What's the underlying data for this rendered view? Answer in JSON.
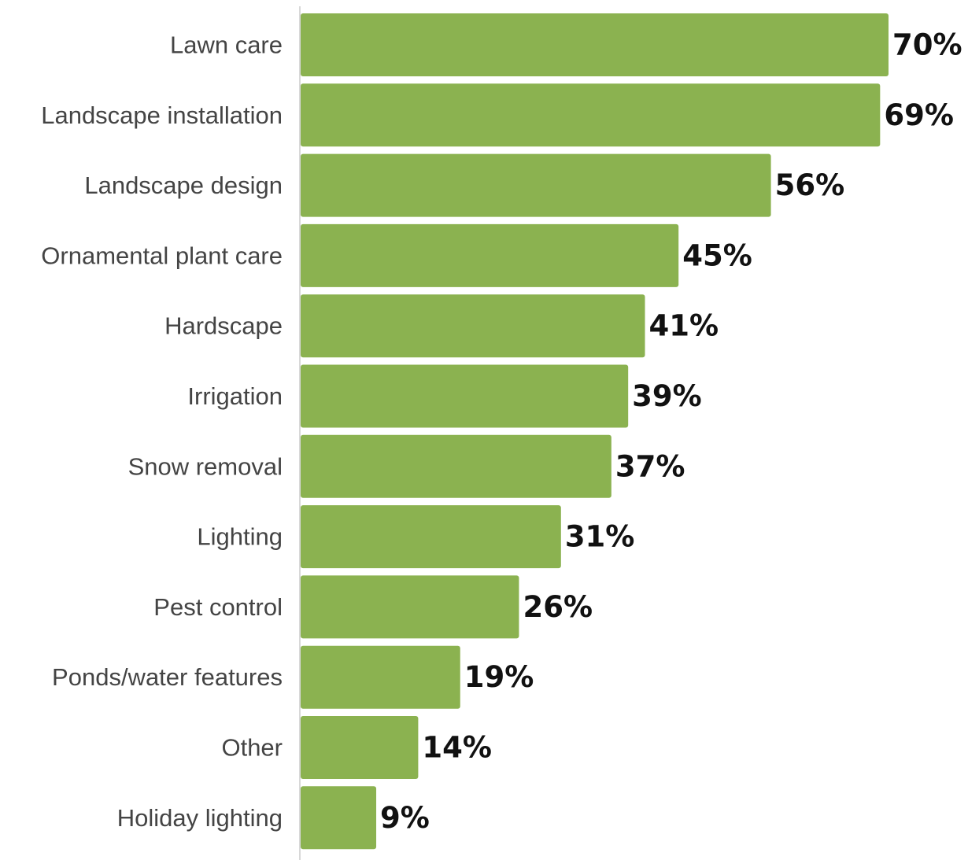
{
  "chart_data": {
    "type": "bar",
    "orientation": "horizontal",
    "categories": [
      "Lawn care",
      "Landscape installation",
      "Landscape design",
      "Ornamental plant care",
      "Hardscape",
      "Irrigation",
      "Snow removal",
      "Lighting",
      "Pest control",
      "Ponds/water features",
      "Other",
      "Holiday lighting"
    ],
    "values": [
      70,
      69,
      56,
      45,
      41,
      39,
      37,
      31,
      26,
      19,
      14,
      9
    ],
    "value_labels": [
      "70%",
      "69%",
      "56%",
      "45%",
      "41%",
      "39%",
      "37%",
      "31%",
      "26%",
      "19%",
      "14%",
      "9%"
    ],
    "unit": "%",
    "title": "",
    "xlabel": "",
    "ylabel": "",
    "xlim": [
      0,
      70
    ],
    "grid": false,
    "legend": "none",
    "colors": {
      "bar": "#8bb250",
      "axis": "#cccccc",
      "category_text": "#444444",
      "value_text": "#111111"
    }
  }
}
